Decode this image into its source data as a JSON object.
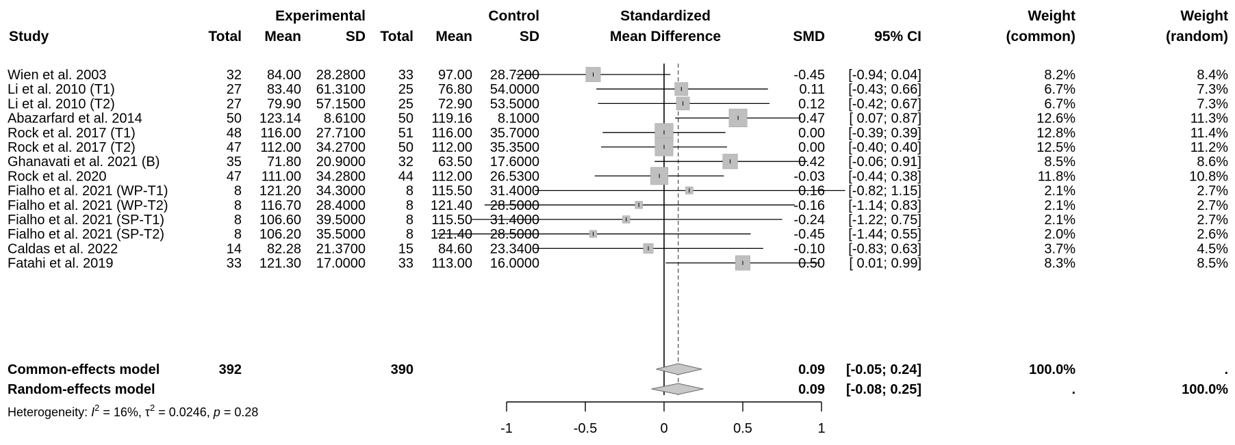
{
  "header": {
    "group_experimental": "Experimental",
    "group_control": "Control",
    "smd_title_1": "Standardized",
    "smd_title_2": "Mean Difference",
    "weight_common_1": "Weight",
    "weight_common_2": "(common)",
    "weight_random_1": "Weight",
    "weight_random_2": "(random)",
    "col_study": "Study",
    "col_exp_total": "Total",
    "col_exp_mean": "Mean",
    "col_exp_sd": "SD",
    "col_ctl_total": "Total",
    "col_ctl_mean": "Mean",
    "col_ctl_sd": "SD",
    "col_smd": "SMD",
    "col_ci": "95% CI"
  },
  "chart_data": {
    "type": "forest",
    "xlim": [
      -1,
      1
    ],
    "null_line": 0,
    "summary_line": 0.09,
    "ticks": [
      "-1",
      "-0.5",
      "0",
      "0.5",
      "1"
    ],
    "tick_values": [
      -1,
      -0.5,
      0,
      0.5,
      1
    ],
    "studies": [
      {
        "study": "Wien et al. 2003",
        "e_total": "32",
        "e_mean": "84.00",
        "e_sd": "28.2800",
        "c_total": "33",
        "c_mean": "97.00",
        "c_sd": "28.7200",
        "smd_text": "-0.45",
        "ci_text": "[-0.94; 0.04]",
        "w_common": "8.2%",
        "w_random": "8.4%",
        "smd": -0.45,
        "lo": -0.94,
        "hi": 0.04,
        "weight": 8.2
      },
      {
        "study": "Li et al. 2010 (T1)",
        "e_total": "27",
        "e_mean": "83.40",
        "e_sd": "61.3100",
        "c_total": "25",
        "c_mean": "76.80",
        "c_sd": "54.0000",
        "smd_text": "0.11",
        "ci_text": "[-0.43; 0.66]",
        "w_common": "6.7%",
        "w_random": "7.3%",
        "smd": 0.11,
        "lo": -0.43,
        "hi": 0.66,
        "weight": 6.7
      },
      {
        "study": "Li et al. 2010 (T2)",
        "e_total": "27",
        "e_mean": "79.90",
        "e_sd": "57.1500",
        "c_total": "25",
        "c_mean": "72.90",
        "c_sd": "53.5000",
        "smd_text": "0.12",
        "ci_text": "[-0.42; 0.67]",
        "w_common": "6.7%",
        "w_random": "7.3%",
        "smd": 0.12,
        "lo": -0.42,
        "hi": 0.67,
        "weight": 6.7
      },
      {
        "study": "Abazarfard et al. 2014",
        "e_total": "50",
        "e_mean": "123.14",
        "e_sd": "8.6100",
        "c_total": "50",
        "c_mean": "119.16",
        "c_sd": "8.1000",
        "smd_text": "0.47",
        "ci_text": "[ 0.07; 0.87]",
        "w_common": "12.6%",
        "w_random": "11.3%",
        "smd": 0.47,
        "lo": 0.07,
        "hi": 0.87,
        "weight": 12.6
      },
      {
        "study": "Rock et al. 2017 (T1)",
        "e_total": "48",
        "e_mean": "116.00",
        "e_sd": "27.7100",
        "c_total": "51",
        "c_mean": "116.00",
        "c_sd": "35.7000",
        "smd_text": "0.00",
        "ci_text": "[-0.39; 0.39]",
        "w_common": "12.8%",
        "w_random": "11.4%",
        "smd": 0.0,
        "lo": -0.39,
        "hi": 0.39,
        "weight": 12.8
      },
      {
        "study": "Rock et al. 2017 (T2)",
        "e_total": "47",
        "e_mean": "112.00",
        "e_sd": "34.2700",
        "c_total": "50",
        "c_mean": "112.00",
        "c_sd": "35.3500",
        "smd_text": "0.00",
        "ci_text": "[-0.40; 0.40]",
        "w_common": "12.5%",
        "w_random": "11.2%",
        "smd": 0.0,
        "lo": -0.4,
        "hi": 0.4,
        "weight": 12.5
      },
      {
        "study": "Ghanavati et al. 2021 (B)",
        "e_total": "35",
        "e_mean": "71.80",
        "e_sd": "20.9000",
        "c_total": "32",
        "c_mean": "63.50",
        "c_sd": "17.6000",
        "smd_text": "0.42",
        "ci_text": "[-0.06; 0.91]",
        "w_common": "8.5%",
        "w_random": "8.6%",
        "smd": 0.42,
        "lo": -0.06,
        "hi": 0.91,
        "weight": 8.5
      },
      {
        "study": "Rock et al. 2020",
        "e_total": "47",
        "e_mean": "111.00",
        "e_sd": "34.2800",
        "c_total": "44",
        "c_mean": "112.00",
        "c_sd": "26.5300",
        "smd_text": "-0.03",
        "ci_text": "[-0.44; 0.38]",
        "w_common": "11.8%",
        "w_random": "10.8%",
        "smd": -0.03,
        "lo": -0.44,
        "hi": 0.38,
        "weight": 11.8
      },
      {
        "study": "Fialho et al. 2021 (WP-T1)",
        "e_total": "8",
        "e_mean": "121.20",
        "e_sd": "34.3000",
        "c_total": "8",
        "c_mean": "115.50",
        "c_sd": "31.4000",
        "smd_text": "0.16",
        "ci_text": "[-0.82; 1.15]",
        "w_common": "2.1%",
        "w_random": "2.7%",
        "smd": 0.16,
        "lo": -0.82,
        "hi": 1.15,
        "weight": 2.1
      },
      {
        "study": "Fialho et al. 2021 (WP-T2)",
        "e_total": "8",
        "e_mean": "116.70",
        "e_sd": "28.4000",
        "c_total": "8",
        "c_mean": "121.40",
        "c_sd": "28.5000",
        "smd_text": "-0.16",
        "ci_text": "[-1.14; 0.83]",
        "w_common": "2.1%",
        "w_random": "2.7%",
        "smd": -0.16,
        "lo": -1.14,
        "hi": 0.83,
        "weight": 2.1
      },
      {
        "study": "Fialho et al. 2021 (SP-T1)",
        "e_total": "8",
        "e_mean": "106.60",
        "e_sd": "39.5000",
        "c_total": "8",
        "c_mean": "115.50",
        "c_sd": "31.4000",
        "smd_text": "-0.24",
        "ci_text": "[-1.22; 0.75]",
        "w_common": "2.1%",
        "w_random": "2.7%",
        "smd": -0.24,
        "lo": -1.22,
        "hi": 0.75,
        "weight": 2.1
      },
      {
        "study": "Fialho et al. 2021 (SP-T2)",
        "e_total": "8",
        "e_mean": "106.20",
        "e_sd": "35.5000",
        "c_total": "8",
        "c_mean": "121.40",
        "c_sd": "28.5000",
        "smd_text": "-0.45",
        "ci_text": "[-1.44; 0.55]",
        "w_common": "2.0%",
        "w_random": "2.6%",
        "smd": -0.45,
        "lo": -1.44,
        "hi": 0.55,
        "weight": 2.0
      },
      {
        "study": "Caldas et al. 2022",
        "e_total": "14",
        "e_mean": "82.28",
        "e_sd": "21.3700",
        "c_total": "15",
        "c_mean": "84.60",
        "c_sd": "23.3400",
        "smd_text": "-0.10",
        "ci_text": "[-0.83; 0.63]",
        "w_common": "3.7%",
        "w_random": "4.5%",
        "smd": -0.1,
        "lo": -0.83,
        "hi": 0.63,
        "weight": 3.7
      },
      {
        "study": "Fatahi et al. 2019",
        "e_total": "33",
        "e_mean": "121.30",
        "e_sd": "17.0000",
        "c_total": "33",
        "c_mean": "113.00",
        "c_sd": "16.0000",
        "smd_text": "0.50",
        "ci_text": "[ 0.01; 0.99]",
        "w_common": "8.3%",
        "w_random": "8.5%",
        "smd": 0.5,
        "lo": 0.01,
        "hi": 0.99,
        "weight": 8.3
      }
    ],
    "summaries": [
      {
        "label": "Common-effects model",
        "e_total": "392",
        "c_total": "390",
        "smd_text": "0.09",
        "ci_text": "[-0.05; 0.24]",
        "w_common": "100.0%",
        "w_random": ".",
        "smd": 0.09,
        "lo": -0.05,
        "hi": 0.24
      },
      {
        "label": "Random-effects model",
        "e_total": "",
        "c_total": "",
        "smd_text": "0.09",
        "ci_text": "[-0.08; 0.25]",
        "w_common": ".",
        "w_random": "100.0%",
        "smd": 0.09,
        "lo": -0.08,
        "hi": 0.25
      }
    ],
    "heterogeneity": {
      "prefix": "Heterogeneity: ",
      "i2_symbol": "I",
      "i2_exp": "2",
      "i2_value": " = 16%, ",
      "tau_symbol": "τ",
      "tau_exp": "2",
      "tau_value": " = 0.0246, ",
      "p_symbol": "p",
      "p_value": " = 0.28"
    },
    "colors": {
      "box": "#bfbfbf",
      "box_stroke": "#a6a6a6",
      "diamond": "#c8c8c8",
      "line": "#000000",
      "summary_line": "#555555"
    }
  }
}
